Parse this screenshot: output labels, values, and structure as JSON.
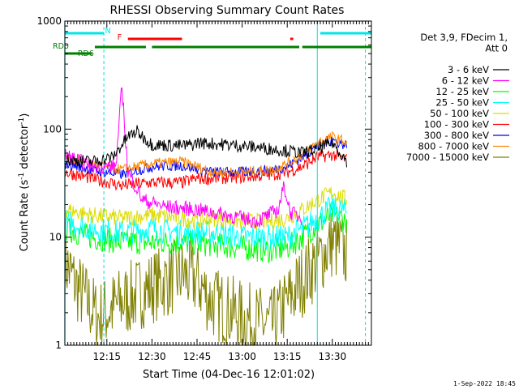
{
  "chart_data": {
    "type": "line",
    "title": "RHESSI Observing Summary Count Rates",
    "xlabel": "Start Time (04-Dec-16 12:01:02)",
    "ylabel_main": "Count Rate (s",
    "ylabel_sup1": "-1",
    "ylabel_mid": " detector",
    "ylabel_sup2": "-1",
    "ylabel_end": ")",
    "yscale": "log",
    "ylim": [
      1,
      1000
    ],
    "xlim": [
      "12:01:02",
      "13:43:00"
    ],
    "x_ticks": [
      "12:15",
      "12:30",
      "12:45",
      "13:00",
      "13:15",
      "13:30"
    ],
    "y_ticks": [
      "1",
      "10",
      "100",
      "1000"
    ],
    "timestamp": "1-Sep-2022 18:45",
    "legend_header": [
      "Det 3,9, FDecim 1,",
      "Att 0"
    ],
    "series": [
      {
        "name": "3 - 6 keV",
        "color": "#000000",
        "x": [
          "12:01",
          "12:10",
          "12:17",
          "12:22",
          "12:25",
          "12:30",
          "12:40",
          "12:44",
          "12:45",
          "12:55",
          "13:05",
          "13:15",
          "13:20",
          "13:25",
          "13:30",
          "13:35"
        ],
        "values": [
          52,
          50,
          55,
          85,
          95,
          72,
          70,
          72,
          75,
          72,
          68,
          63,
          60,
          65,
          75,
          50
        ]
      },
      {
        "name": "6 - 12 keV",
        "color": "#ff00ff",
        "x": [
          "12:01",
          "12:10",
          "12:18",
          "12:20",
          "12:22",
          "12:27",
          "12:35",
          "12:45",
          "12:55",
          "13:05",
          "13:12",
          "13:14",
          "13:16",
          "13:20"
        ],
        "values": [
          58,
          45,
          45,
          250,
          40,
          22,
          19,
          18,
          16,
          14,
          18,
          30,
          17,
          15
        ]
      },
      {
        "name": "12 - 25 keV",
        "color": "#00ff00",
        "x": [
          "12:01",
          "12:10",
          "12:20",
          "12:30",
          "12:40",
          "12:50",
          "13:00",
          "13:10",
          "13:15",
          "13:20",
          "13:25",
          "13:30",
          "13:35"
        ],
        "values": [
          12,
          10,
          9,
          9,
          9,
          8.5,
          8,
          7.5,
          8,
          10,
          13,
          16,
          14
        ]
      },
      {
        "name": "25 - 50 keV",
        "color": "#00ffff",
        "x": [
          "12:01",
          "12:10",
          "12:20",
          "12:30",
          "12:40",
          "12:50",
          "13:00",
          "13:10",
          "13:15",
          "13:20",
          "13:25",
          "13:30",
          "13:35"
        ],
        "values": [
          14,
          12,
          11,
          12,
          11,
          11,
          10,
          10,
          10,
          12,
          15,
          19,
          17
        ]
      },
      {
        "name": "50 - 100 keV",
        "color": "#dddd00",
        "x": [
          "12:01",
          "12:10",
          "12:20",
          "12:30",
          "12:40",
          "12:45",
          "12:50",
          "13:00",
          "13:10",
          "13:15",
          "13:20",
          "13:25",
          "13:30",
          "13:35"
        ],
        "values": [
          18,
          16,
          15,
          16,
          15,
          14,
          15,
          14,
          14,
          15,
          18,
          22,
          26,
          22
        ]
      },
      {
        "name": "100 - 300 keV",
        "color": "#ff0000",
        "x": [
          "12:01",
          "12:10",
          "12:20",
          "12:30",
          "12:40",
          "12:45",
          "12:50",
          "13:00",
          "13:10",
          "13:15",
          "13:20",
          "13:25",
          "13:30",
          "13:35"
        ],
        "values": [
          40,
          35,
          30,
          32,
          32,
          35,
          35,
          36,
          38,
          40,
          45,
          55,
          58,
          52
        ]
      },
      {
        "name": "300 - 800 keV",
        "color": "#0000ff",
        "x": [
          "12:01",
          "12:10",
          "12:20",
          "12:30",
          "12:40",
          "12:45",
          "12:50",
          "13:00",
          "13:10",
          "13:15",
          "13:20",
          "13:25",
          "13:30",
          "13:35"
        ],
        "values": [
          48,
          42,
          38,
          45,
          46,
          43,
          40,
          40,
          42,
          45,
          55,
          70,
          80,
          70
        ]
      },
      {
        "name": "800 - 7000 keV",
        "color": "#ff8800",
        "x": [
          "12:01",
          "12:10",
          "12:20",
          "12:30",
          "12:40",
          "12:45",
          "12:50",
          "13:00",
          "13:10",
          "13:15",
          "13:20",
          "13:25",
          "13:30",
          "13:35"
        ],
        "values": [
          55,
          48,
          42,
          48,
          50,
          45,
          40,
          40,
          42,
          48,
          58,
          75,
          85,
          75
        ]
      },
      {
        "name": "7000 - 15000 keV",
        "color": "#808000",
        "x": [
          "12:01",
          "12:05",
          "12:12",
          "12:20",
          "12:30",
          "12:40",
          "12:45",
          "12:50",
          "13:00",
          "13:10",
          "13:15",
          "13:20",
          "13:25",
          "13:30",
          "13:35"
        ],
        "values": [
          6,
          3.5,
          1.8,
          2.5,
          3.5,
          4.5,
          4,
          2.5,
          1.8,
          1.5,
          2.5,
          4,
          6,
          9,
          7
        ]
      }
    ],
    "flags": [
      {
        "label": "N",
        "color": "#00e5e5",
        "segments": [
          [
            "12:01",
            "12:14"
          ],
          [
            "13:26",
            "13:43"
          ]
        ]
      },
      {
        "label": "F",
        "color": "#ff0000",
        "segments": [
          [
            "12:22",
            "12:40"
          ],
          [
            "13:16",
            "13:17"
          ]
        ]
      },
      {
        "label": "RD0",
        "color": "#008000",
        "segments": [
          [
            "12:11",
            "12:28"
          ],
          [
            "12:30",
            "12:45"
          ],
          [
            "12:45",
            "13:19"
          ],
          [
            "13:20",
            "13:43"
          ]
        ]
      },
      {
        "label": "RD6",
        "color": "#008000",
        "segments": [
          [
            "12:01",
            "12:10"
          ]
        ]
      }
    ],
    "vlines": [
      {
        "x": "12:01",
        "color": "#00e5e5",
        "style": "solid"
      },
      {
        "x": "12:14",
        "color": "#00e5e5",
        "style": "dashed"
      },
      {
        "x": "13:25",
        "color": "#00e5e5",
        "style": "solid"
      },
      {
        "x": "13:41",
        "color": "#00e5e5",
        "style": "dashed"
      }
    ]
  }
}
